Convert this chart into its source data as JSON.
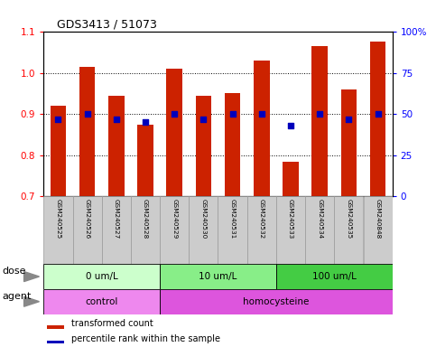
{
  "title": "GDS3413 / 51073",
  "samples": [
    "GSM240525",
    "GSM240526",
    "GSM240527",
    "GSM240528",
    "GSM240529",
    "GSM240530",
    "GSM240531",
    "GSM240532",
    "GSM240533",
    "GSM240534",
    "GSM240535",
    "GSM240848"
  ],
  "transformed_count": [
    0.92,
    1.015,
    0.945,
    0.875,
    1.01,
    0.945,
    0.95,
    1.03,
    0.785,
    1.065,
    0.96,
    1.075
  ],
  "percentile_rank_pct": [
    47,
    50,
    47,
    45,
    50,
    47,
    50,
    50,
    43,
    50,
    47,
    50
  ],
  "bar_bottom": 0.7,
  "ylim_left": [
    0.7,
    1.1
  ],
  "ylim_right": [
    0,
    100
  ],
  "yticks_left": [
    0.7,
    0.8,
    0.9,
    1.0,
    1.1
  ],
  "yticks_right": [
    0,
    25,
    50,
    75,
    100
  ],
  "ytick_labels_right": [
    "0",
    "25",
    "50",
    "75",
    "100%"
  ],
  "bar_color": "#cc2200",
  "dot_color": "#0000bb",
  "dose_groups": [
    {
      "label": "0 um/L",
      "start": 0,
      "end": 4,
      "color": "#ccffcc"
    },
    {
      "label": "10 um/L",
      "start": 4,
      "end": 8,
      "color": "#88ee88"
    },
    {
      "label": "100 um/L",
      "start": 8,
      "end": 12,
      "color": "#44cc44"
    }
  ],
  "agent_groups": [
    {
      "label": "control",
      "start": 0,
      "end": 4,
      "color": "#ee88ee"
    },
    {
      "label": "homocysteine",
      "start": 4,
      "end": 12,
      "color": "#dd55dd"
    }
  ],
  "legend_bar_label": "transformed count",
  "legend_dot_label": "percentile rank within the sample",
  "dose_label": "dose",
  "agent_label": "agent",
  "background_color": "#ffffff",
  "sample_bg_color": "#cccccc",
  "sample_border_color": "#999999"
}
